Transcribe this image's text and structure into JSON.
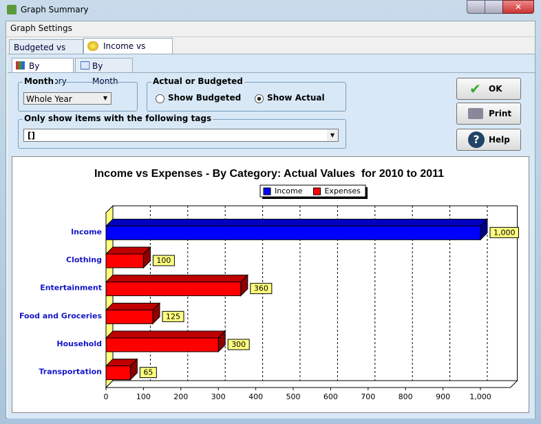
{
  "window": {
    "title": "Graph Summary"
  },
  "menu": [
    "Graph Settings"
  ],
  "tabs": [
    "Budgeted vs Actual",
    "Income vs Expense"
  ],
  "subtabs": [
    "By Category",
    "By Month"
  ],
  "filters": {
    "month_label": "Month",
    "month_value": "Whole Year",
    "mode_label": "Actual or Budgeted",
    "options": [
      "Show Budgeted",
      "Show Actual"
    ],
    "tags_label": "Only show items with the following tags",
    "tags_value": "[]"
  },
  "buttons": [
    "OK",
    "Print",
    "Help"
  ],
  "chart_data": {
    "type": "bar",
    "orientation": "horizontal",
    "title": "Income vs Expenses - By Category: Actual Values  for 2010 to 2011",
    "categories": [
      "Income",
      "Clothing",
      "Entertainment",
      "Food and Groceries",
      "Household",
      "Transportation"
    ],
    "series": [
      {
        "name": "Income",
        "color": "#0000ff",
        "values": [
          1000,
          null,
          null,
          null,
          null,
          null
        ],
        "value_labels": [
          "1,000",
          null,
          null,
          null,
          null,
          null
        ]
      },
      {
        "name": "Expenses",
        "color": "#ff0000",
        "values": [
          null,
          100,
          360,
          125,
          300,
          65
        ]
      }
    ],
    "xlim": [
      0,
      1080
    ],
    "xticks": [
      0,
      100,
      200,
      300,
      400,
      500,
      600,
      700,
      800,
      900,
      {
        "value": 1000,
        "label": "1,000"
      }
    ],
    "grid": true,
    "legend": "top"
  }
}
